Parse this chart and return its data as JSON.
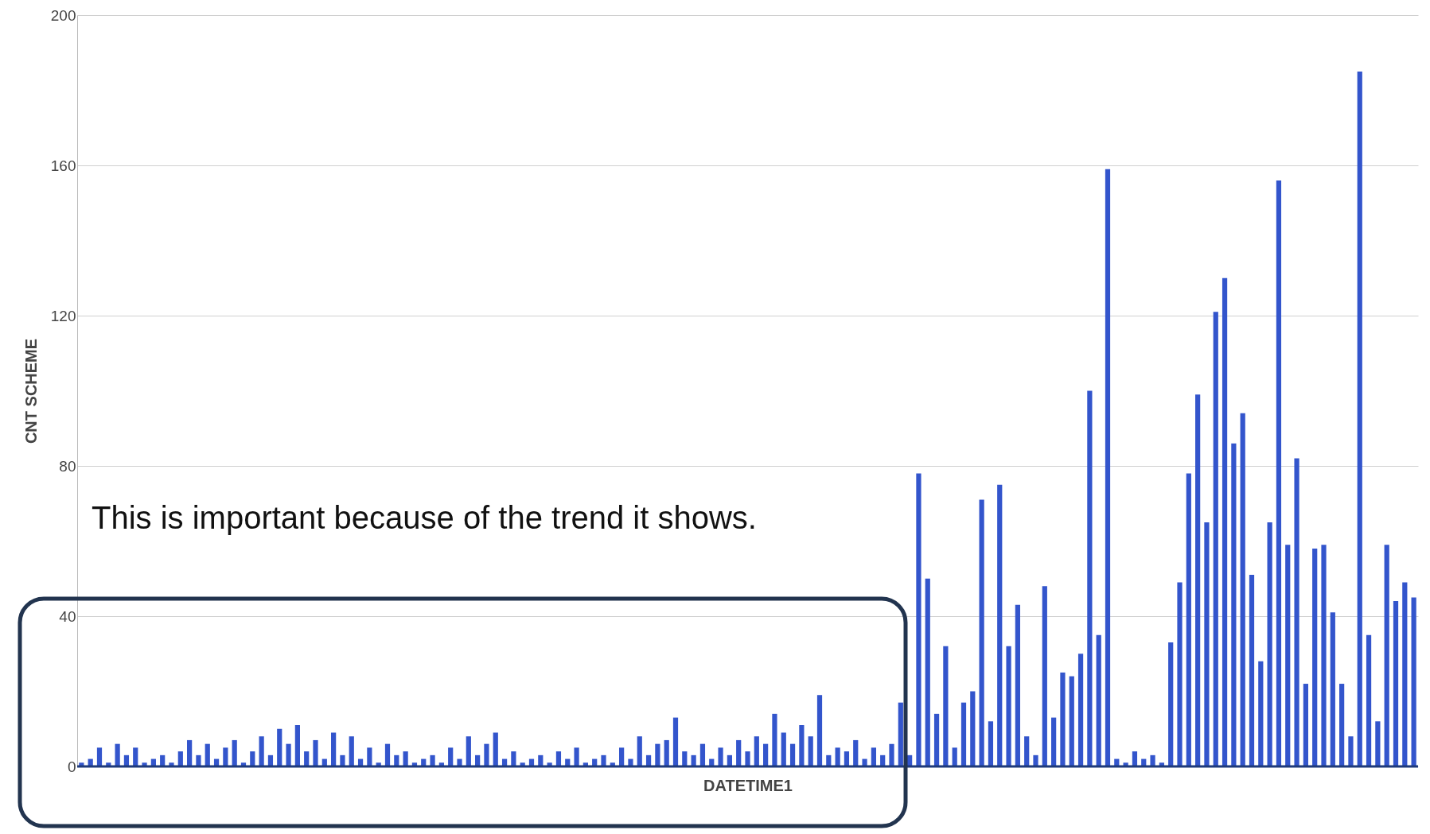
{
  "chart_data": {
    "type": "bar",
    "ylabel": "CNT SCHEME",
    "xlabel": "DATETIME1",
    "annotations": [
      "This is important because of the trend it shows."
    ],
    "categories": [
      null,
      null,
      null,
      null,
      null,
      null,
      null,
      null,
      null,
      null,
      null,
      null,
      null,
      null,
      null,
      null,
      null,
      null,
      null,
      null,
      null,
      null,
      null,
      null,
      null,
      null,
      null,
      null,
      null,
      null,
      null,
      null,
      null,
      null,
      null,
      null,
      null,
      null,
      null,
      null,
      null,
      null,
      null,
      null,
      null,
      null,
      null,
      null,
      null,
      null,
      null,
      null,
      null,
      null,
      null,
      null,
      null,
      null,
      null,
      null,
      null,
      null,
      null,
      null,
      null,
      null,
      null,
      null,
      null,
      null,
      null,
      null,
      null,
      null,
      null,
      null,
      null,
      null,
      null,
      null,
      null,
      null,
      null,
      null,
      null,
      null,
      null,
      null,
      null,
      null,
      null,
      null,
      null,
      null,
      null,
      null,
      null,
      null,
      null,
      null,
      null,
      null,
      null,
      null,
      null,
      null,
      null,
      null,
      null,
      null,
      null,
      null,
      null,
      null,
      null,
      null,
      null,
      null,
      null,
      null,
      null,
      null,
      null,
      null,
      null,
      null,
      null,
      null,
      null,
      null,
      null,
      null,
      null,
      null,
      null,
      null,
      null,
      null,
      null,
      null,
      null,
      null,
      null,
      null,
      null,
      null,
      null,
      null,
      null,
      null
    ],
    "values": [
      1,
      2,
      5,
      1,
      6,
      3,
      5,
      1,
      2,
      3,
      1,
      4,
      7,
      3,
      6,
      2,
      5,
      7,
      1,
      4,
      8,
      3,
      10,
      6,
      11,
      4,
      7,
      2,
      9,
      3,
      8,
      2,
      5,
      1,
      6,
      3,
      4,
      1,
      2,
      3,
      1,
      5,
      2,
      8,
      3,
      6,
      9,
      2,
      4,
      1,
      2,
      3,
      1,
      4,
      2,
      5,
      1,
      2,
      3,
      1,
      5,
      2,
      8,
      3,
      6,
      7,
      13,
      4,
      3,
      6,
      2,
      5,
      3,
      7,
      4,
      8,
      6,
      14,
      9,
      6,
      11,
      8,
      19,
      3,
      5,
      4,
      7,
      2,
      5,
      3,
      6,
      17,
      null,
      3,
      78,
      50,
      14,
      32,
      5,
      17,
      20,
      71,
      12,
      75,
      32,
      43,
      8,
      3,
      48,
      13,
      25,
      24,
      30,
      100,
      35,
      159,
      2,
      1,
      4,
      2,
      3,
      1,
      33,
      49,
      78,
      99,
      65,
      121,
      130,
      86,
      94,
      51,
      28,
      65,
      156,
      59,
      82,
      22,
      58,
      59,
      41,
      22,
      8,
      185,
      35,
      12,
      59,
      44,
      49,
      45
    ],
    "color": "#3355cc",
    "ylim": [
      0,
      200
    ],
    "yticks": [
      0,
      40,
      80,
      120,
      160,
      200
    ],
    "grid": "y",
    "tick_labels": "y"
  }
}
